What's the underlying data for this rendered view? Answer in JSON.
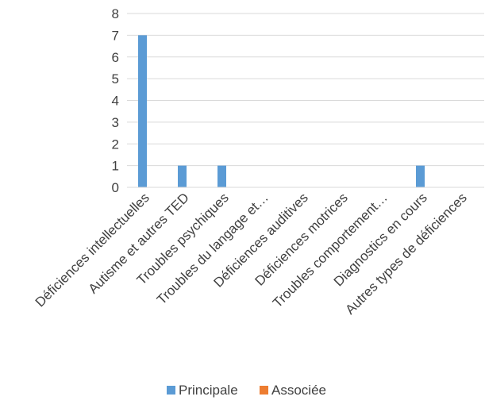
{
  "chart_data": {
    "type": "bar",
    "categories": [
      "Déficiences intellectuelles",
      "Autisme et autres TED",
      "Troubles psychiques",
      "Troubles du langage et…",
      "Déficiences auditives",
      "Déficiences motrices",
      "Troubles comportement…",
      "Diagnostics en cours",
      "Autres types de déficiences"
    ],
    "series": [
      {
        "name": "Principale",
        "color": "#5b9bd5",
        "values": [
          7,
          1,
          1,
          0,
          0,
          0,
          0,
          1,
          0
        ]
      },
      {
        "name": "Associée",
        "color": "#ed7d31",
        "values": [
          0,
          0,
          0,
          0,
          0,
          0,
          0,
          0,
          0
        ]
      }
    ],
    "ylim": [
      0,
      8
    ],
    "yticks": [
      0,
      1,
      2,
      3,
      4,
      5,
      6,
      7,
      8
    ],
    "grid": true,
    "legend_position": "bottom",
    "title": "",
    "xlabel": "",
    "ylabel": ""
  }
}
